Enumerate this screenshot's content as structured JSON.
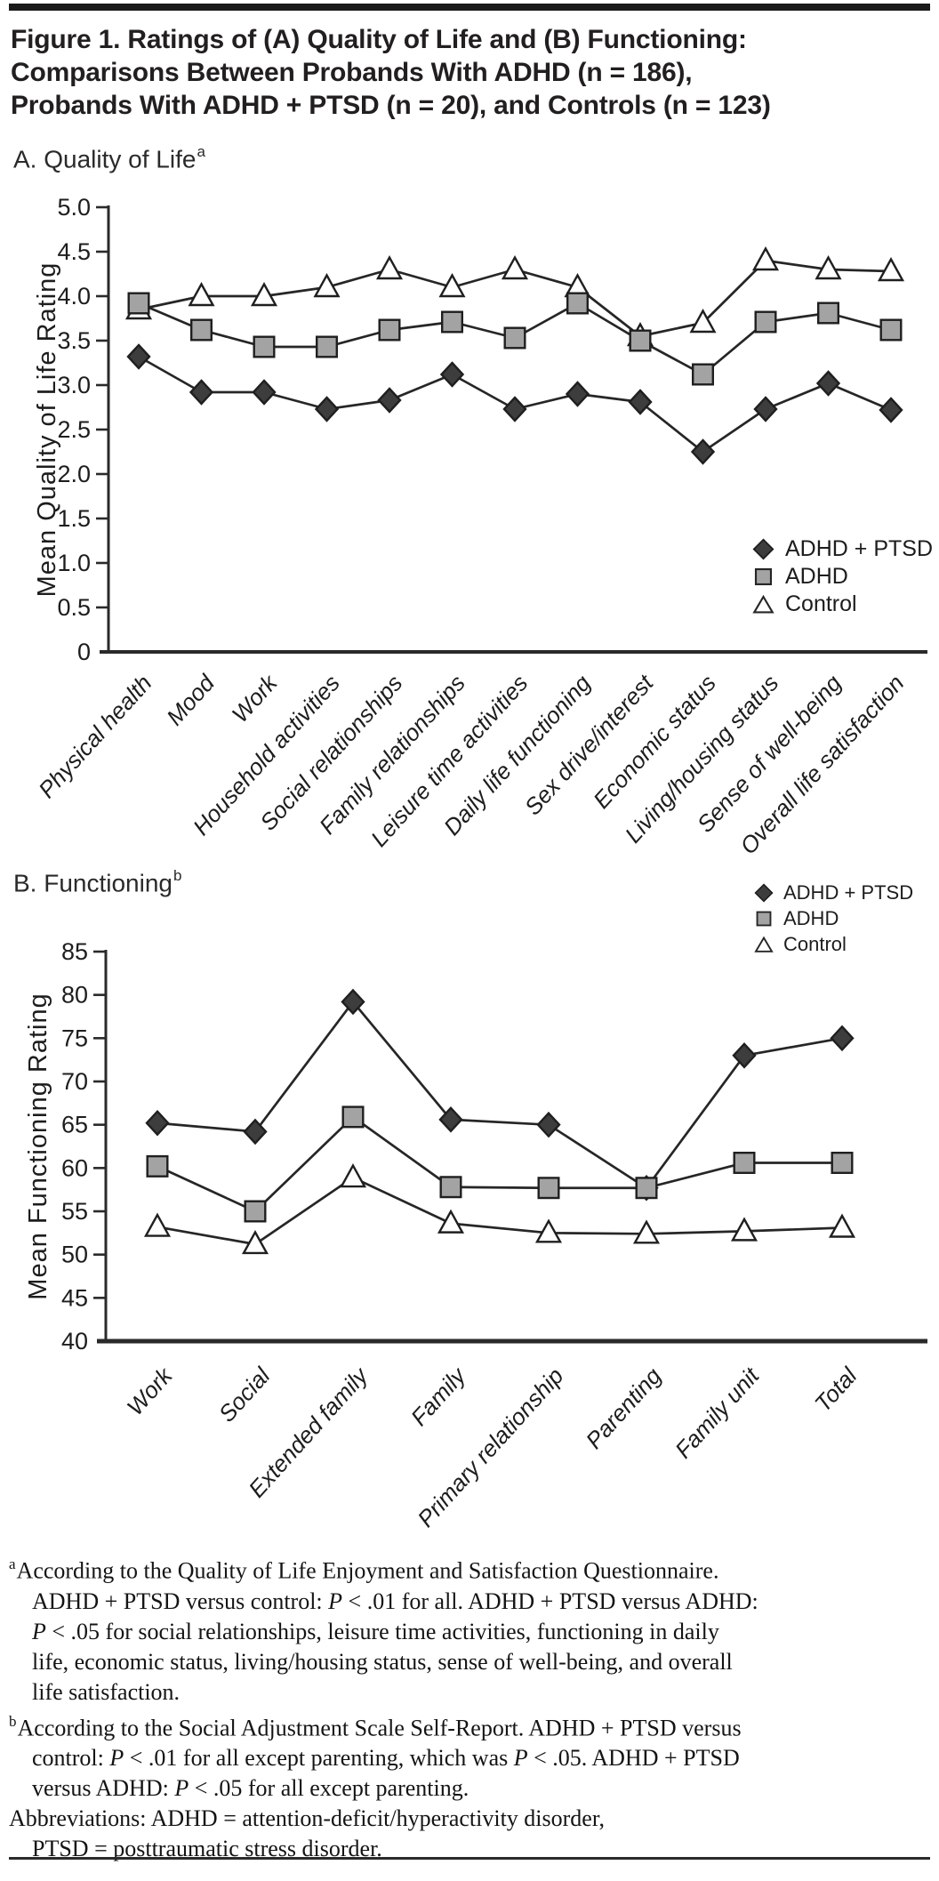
{
  "figure": {
    "title": "Figure 1. Ratings of (A) Quality of Life and (B) Functioning: Comparisons Between Probands With ADHD (n = 186), Probands With ADHD + PTSD (n = 20), and Controls (n = 123)",
    "title_lines": [
      "Figure 1. Ratings of (A) Quality of Life and (B) Functioning:",
      "Comparisons Between Probands With ADHD (n = 186),",
      "Probands With ADHD + PTSD (n = 20), and Controls (n = 123)"
    ]
  },
  "colors": {
    "adhd_ptsd": "#3d3d3d",
    "adhd": "#a3a3a3",
    "control": "#ffffff",
    "line": "#262626",
    "ink": "#1d1d1d"
  },
  "chart_data": [
    {
      "id": "quality_of_life",
      "type": "line",
      "section_label": "A. Quality of Life",
      "section_sup": "a",
      "ylabel": "Mean Quality of Life Rating",
      "ylim": [
        0,
        5
      ],
      "ytick_step": 0.5,
      "ytick_labels": [
        "0",
        "0.5",
        "1.0",
        "1.5",
        "2.0",
        "2.5",
        "3.0",
        "3.5",
        "4.0",
        "4.5",
        "5.0"
      ],
      "grid": false,
      "legend_position": "right-middle",
      "categories": [
        "Physical health",
        "Mood",
        "Work",
        "Household activities",
        "Social relationships",
        "Family relationships",
        "Leisure time activities",
        "Daily life functioning",
        "Sex drive/interest",
        "Economic status",
        "Living/housing status",
        "Sense of well-being",
        "Overall life satisfaction"
      ],
      "series": [
        {
          "name": "ADHD + PTSD",
          "marker": "diamond",
          "color": "#3d3d3d",
          "values": [
            3.32,
            2.92,
            2.92,
            2.73,
            2.83,
            3.12,
            2.73,
            2.9,
            2.81,
            2.25,
            2.73,
            3.02,
            2.72
          ]
        },
        {
          "name": "ADHD",
          "marker": "square",
          "color": "#a3a3a3",
          "values": [
            3.92,
            3.62,
            3.43,
            3.43,
            3.62,
            3.71,
            3.53,
            3.92,
            3.5,
            3.12,
            3.71,
            3.81,
            3.62
          ]
        },
        {
          "name": "Control",
          "marker": "triangle",
          "color": "#ffffff",
          "values": [
            3.85,
            4.0,
            4.0,
            4.1,
            4.3,
            4.1,
            4.3,
            4.1,
            3.55,
            3.7,
            4.4,
            4.3,
            4.28
          ]
        }
      ]
    },
    {
      "id": "functioning",
      "type": "line",
      "section_label": "B. Functioning",
      "section_sup": "b",
      "ylabel": "Mean Functioning Rating",
      "ylim": [
        40,
        85
      ],
      "ytick_step": 5,
      "ytick_labels": [
        "40",
        "45",
        "50",
        "55",
        "60",
        "65",
        "70",
        "75",
        "80",
        "85"
      ],
      "grid": false,
      "legend_position": "top-right",
      "categories": [
        "Work",
        "Social",
        "Extended family",
        "Family",
        "Primary relationship",
        "Parenting",
        "Family unit",
        "Total"
      ],
      "series": [
        {
          "name": "ADHD + PTSD",
          "marker": "diamond",
          "color": "#3d3d3d",
          "values": [
            65.2,
            64.2,
            79.2,
            65.6,
            65.0,
            57.7,
            73.0,
            75.0
          ]
        },
        {
          "name": "ADHD",
          "marker": "square",
          "color": "#a3a3a3",
          "values": [
            60.2,
            55.0,
            65.9,
            57.8,
            57.7,
            57.7,
            60.6,
            60.6
          ]
        },
        {
          "name": "Control",
          "marker": "triangle",
          "color": "#ffffff",
          "values": [
            53.2,
            51.2,
            58.9,
            53.6,
            52.5,
            52.4,
            52.7,
            53.1
          ]
        }
      ]
    }
  ],
  "footnotes": [
    {
      "sup": "a",
      "lines": [
        "According to the Quality of Life Enjoyment and Satisfaction Questionnaire.",
        "ADHD + PTSD versus control: P < .01 for all. ADHD + PTSD versus ADHD:",
        "P < .05 for social relationships, leisure time activities, functioning in daily",
        "life, economic status, living/housing status, sense of well-being, and overall",
        "life satisfaction."
      ]
    },
    {
      "sup": "b",
      "lines": [
        "According to the Social Adjustment Scale Self-Report. ADHD + PTSD versus",
        "control: P < .01 for all except parenting, which was P < .05. ADHD + PTSD",
        "versus ADHD: P < .05 for all except parenting."
      ]
    },
    {
      "sup": "",
      "lines": [
        "Abbreviations: ADHD = attention-deficit/hyperactivity disorder,",
        "PTSD = posttraumatic stress disorder."
      ]
    }
  ]
}
